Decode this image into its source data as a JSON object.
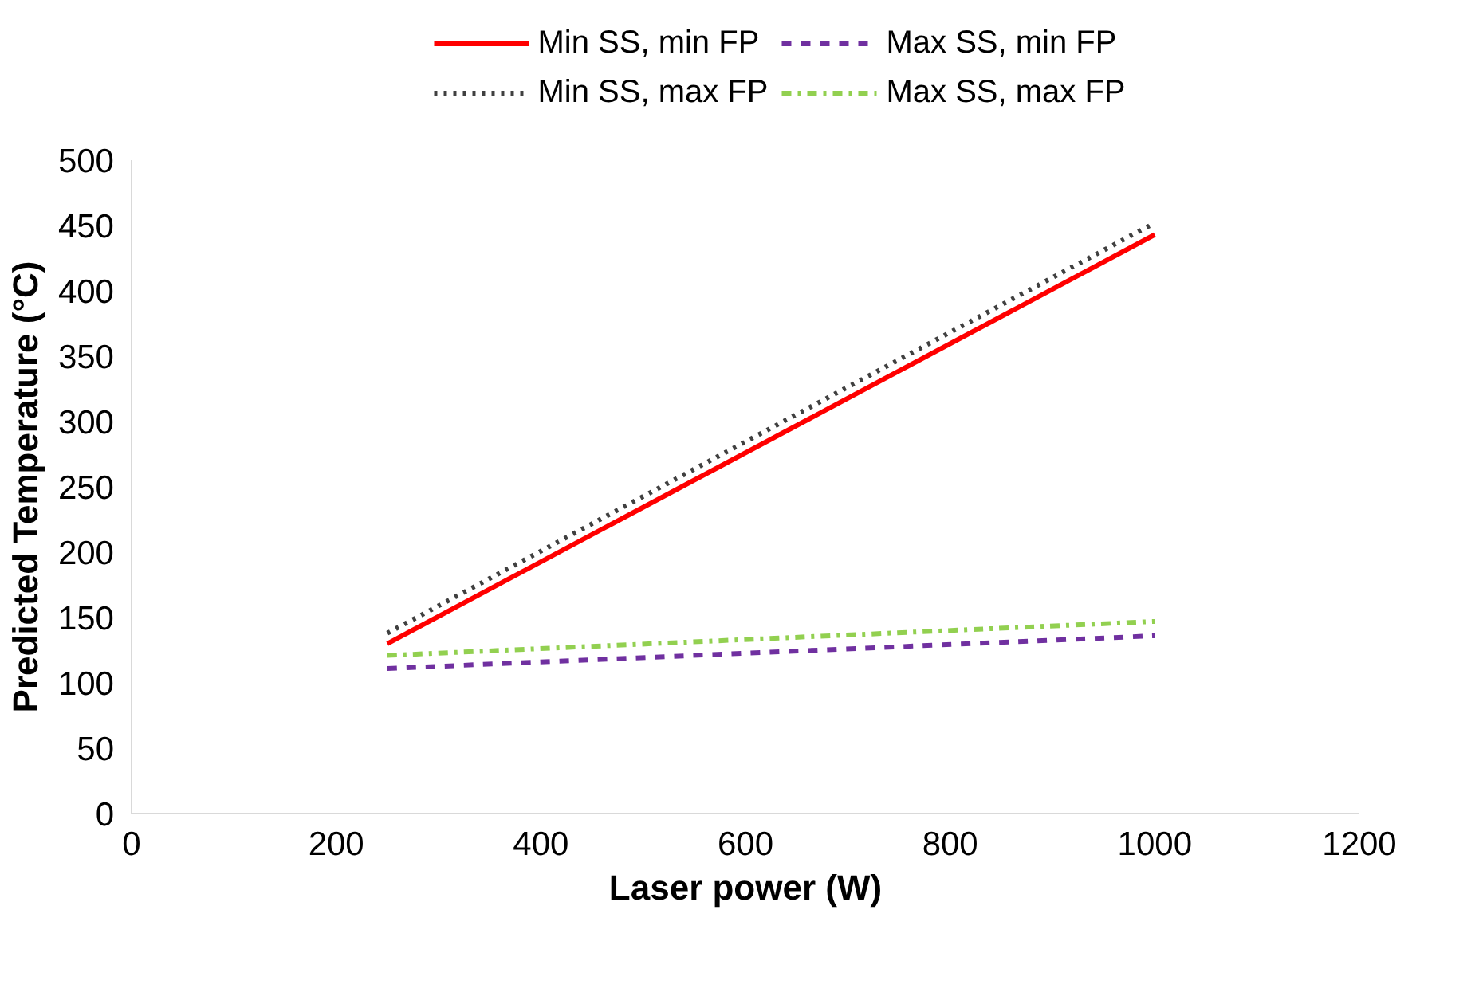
{
  "chart_data": {
    "type": "line",
    "xlabel": "Laser power (W)",
    "ylabel": "Predicted Temperature (°C)",
    "x": [
      250,
      1000
    ],
    "series": [
      {
        "name": "Min SS, min FP",
        "color": "#ff0000",
        "line_style": "solid",
        "values": [
          130,
          443
        ]
      },
      {
        "name": "Max SS, min FP",
        "color": "#7030a0",
        "line_style": "dashed",
        "values": [
          111,
          136
        ]
      },
      {
        "name": "Min SS, max FP",
        "color": "#404040",
        "line_style": "dotted",
        "values": [
          138,
          452
        ]
      },
      {
        "name": "Max SS, max FP",
        "color": "#92d050",
        "line_style": "dashdot",
        "values": [
          121,
          147
        ]
      }
    ],
    "xlim": [
      0,
      1200
    ],
    "xticks": [
      0,
      200,
      400,
      600,
      800,
      1000,
      1200
    ],
    "ylim": [
      0,
      500
    ],
    "yticks": [
      0,
      50,
      100,
      150,
      200,
      250,
      300,
      350,
      400,
      450,
      500
    ],
    "grid": false,
    "legend": "top",
    "marker": "none"
  }
}
